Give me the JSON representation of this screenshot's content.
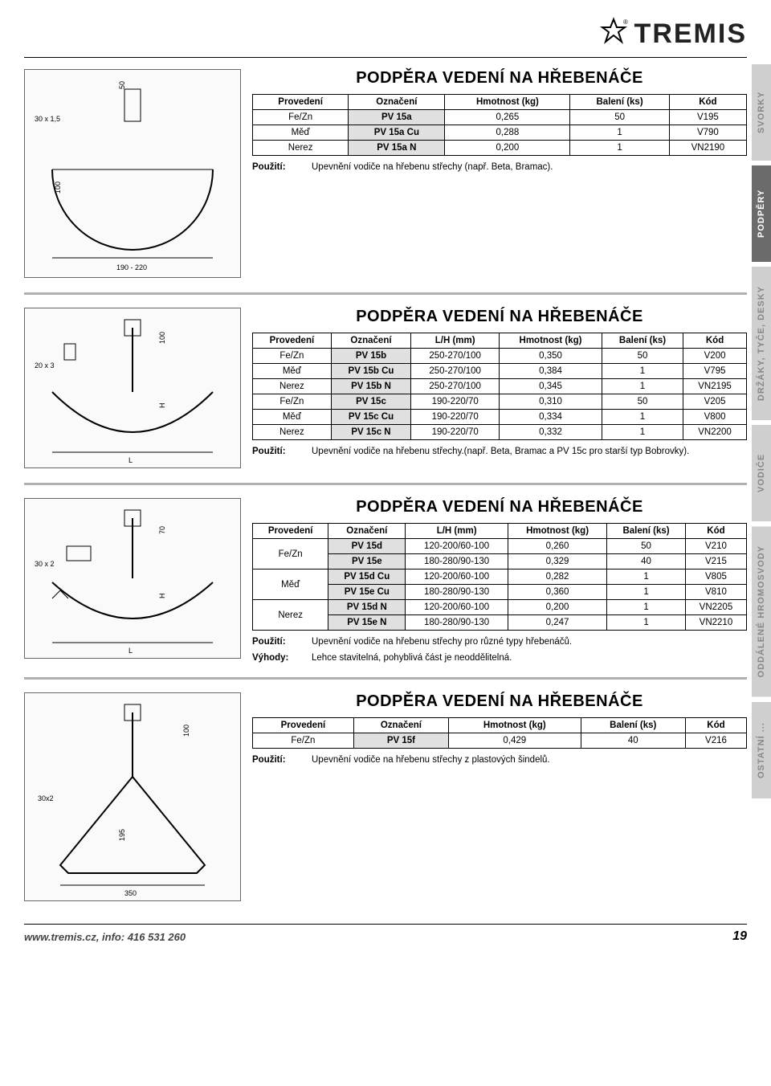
{
  "brand": "TREMIS",
  "side_tabs": [
    {
      "label": "SVORKY",
      "active": false
    },
    {
      "label": "PODPĚRY",
      "active": true
    },
    {
      "label": "DRŽÁKY, TYČE, DESKY",
      "active": false
    },
    {
      "label": "VODIČE",
      "active": false
    },
    {
      "label": "ODDÁLENÉ HROMOSVODY",
      "active": false
    },
    {
      "label": "OSTATNÍ ...",
      "active": false
    }
  ],
  "sections": [
    {
      "title": "PODPĚRA VEDENÍ NA HŘEBENÁČE",
      "diagram_dims": [
        "30 x 1,5",
        "50",
        "100",
        "190 - 220"
      ],
      "columns": [
        "Provedení",
        "Označení",
        "Hmotnost (kg)",
        "Balení (ks)",
        "Kód"
      ],
      "rows": [
        [
          "Fe/Zn",
          "PV 15a",
          "0,265",
          "50",
          "V195"
        ],
        [
          "Měď",
          "PV 15a Cu",
          "0,288",
          "1",
          "V790"
        ],
        [
          "Nerez",
          "PV 15a N",
          "0,200",
          "1",
          "VN2190"
        ]
      ],
      "notes": [
        {
          "label": "Použití:",
          "text": "Upevnění vodiče na hřebenu střechy (např. Beta, Bramac)."
        }
      ]
    },
    {
      "title": "PODPĚRA VEDENÍ NA HŘEBENÁČE",
      "diagram_dims": [
        "20 x 3",
        "100",
        "H",
        "L"
      ],
      "columns": [
        "Provedení",
        "Označení",
        "L/H (mm)",
        "Hmotnost (kg)",
        "Balení (ks)",
        "Kód"
      ],
      "rows": [
        [
          "Fe/Zn",
          "PV 15b",
          "250-270/100",
          "0,350",
          "50",
          "V200"
        ],
        [
          "Měď",
          "PV 15b Cu",
          "250-270/100",
          "0,384",
          "1",
          "V795"
        ],
        [
          "Nerez",
          "PV 15b N",
          "250-270/100",
          "0,345",
          "1",
          "VN2195"
        ],
        [
          "Fe/Zn",
          "PV 15c",
          "190-220/70",
          "0,310",
          "50",
          "V205"
        ],
        [
          "Měď",
          "PV 15c Cu",
          "190-220/70",
          "0,334",
          "1",
          "V800"
        ],
        [
          "Nerez",
          "PV 15c N",
          "190-220/70",
          "0,332",
          "1",
          "VN2200"
        ]
      ],
      "notes": [
        {
          "label": "Použití:",
          "text": "Upevnění vodiče na hřebenu střechy.(např. Beta, Bramac a PV 15c pro starší typ Bobrovky)."
        }
      ]
    },
    {
      "title": "PODPĚRA VEDENÍ NA HŘEBENÁČE",
      "diagram_dims": [
        "30 x 2",
        "70",
        "H",
        "L"
      ],
      "columns": [
        "Provedení",
        "Označení",
        "L/H (mm)",
        "Hmotnost (kg)",
        "Balení (ks)",
        "Kód"
      ],
      "grouped_rows": [
        {
          "group": "Fe/Zn",
          "rows": [
            [
              "PV 15d",
              "120-200/60-100",
              "0,260",
              "50",
              "V210"
            ],
            [
              "PV 15e",
              "180-280/90-130",
              "0,329",
              "40",
              "V215"
            ]
          ]
        },
        {
          "group": "Měď",
          "rows": [
            [
              "PV 15d Cu",
              "120-200/60-100",
              "0,282",
              "1",
              "V805"
            ],
            [
              "PV 15e Cu",
              "180-280/90-130",
              "0,360",
              "1",
              "V810"
            ]
          ]
        },
        {
          "group": "Nerez",
          "rows": [
            [
              "PV 15d N",
              "120-200/60-100",
              "0,200",
              "1",
              "VN2205"
            ],
            [
              "PV 15e N",
              "180-280/90-130",
              "0,247",
              "1",
              "VN2210"
            ]
          ]
        }
      ],
      "notes": [
        {
          "label": "Použití:",
          "text": "Upevnění vodiče na hřebenu střechy pro různé typy hřebenáčů."
        },
        {
          "label": "Výhody:",
          "text": "Lehce stavitelná, pohyblivá část je neoddělitelná."
        }
      ]
    },
    {
      "title": "PODPĚRA VEDENÍ NA HŘEBENÁČE",
      "diagram_dims": [
        "30x2",
        "100",
        "195",
        "350"
      ],
      "columns": [
        "Provedení",
        "Označení",
        "Hmotnost (kg)",
        "Balení (ks)",
        "Kód"
      ],
      "rows": [
        [
          "Fe/Zn",
          "PV 15f",
          "0,429",
          "40",
          "V216"
        ]
      ],
      "notes": [
        {
          "label": "Použití:",
          "text": "Upevnění vodiče na hřebenu střechy z plastových šindelů."
        }
      ]
    }
  ],
  "footer": {
    "url": "www.tremis.cz, info: 416 531 260",
    "page": "19"
  },
  "colors": {
    "gray_cell": "#e0e0e0",
    "tab_active": "#6b6b6b",
    "tab_inactive": "#cfcfcf",
    "rule": "#b0b0b0"
  }
}
